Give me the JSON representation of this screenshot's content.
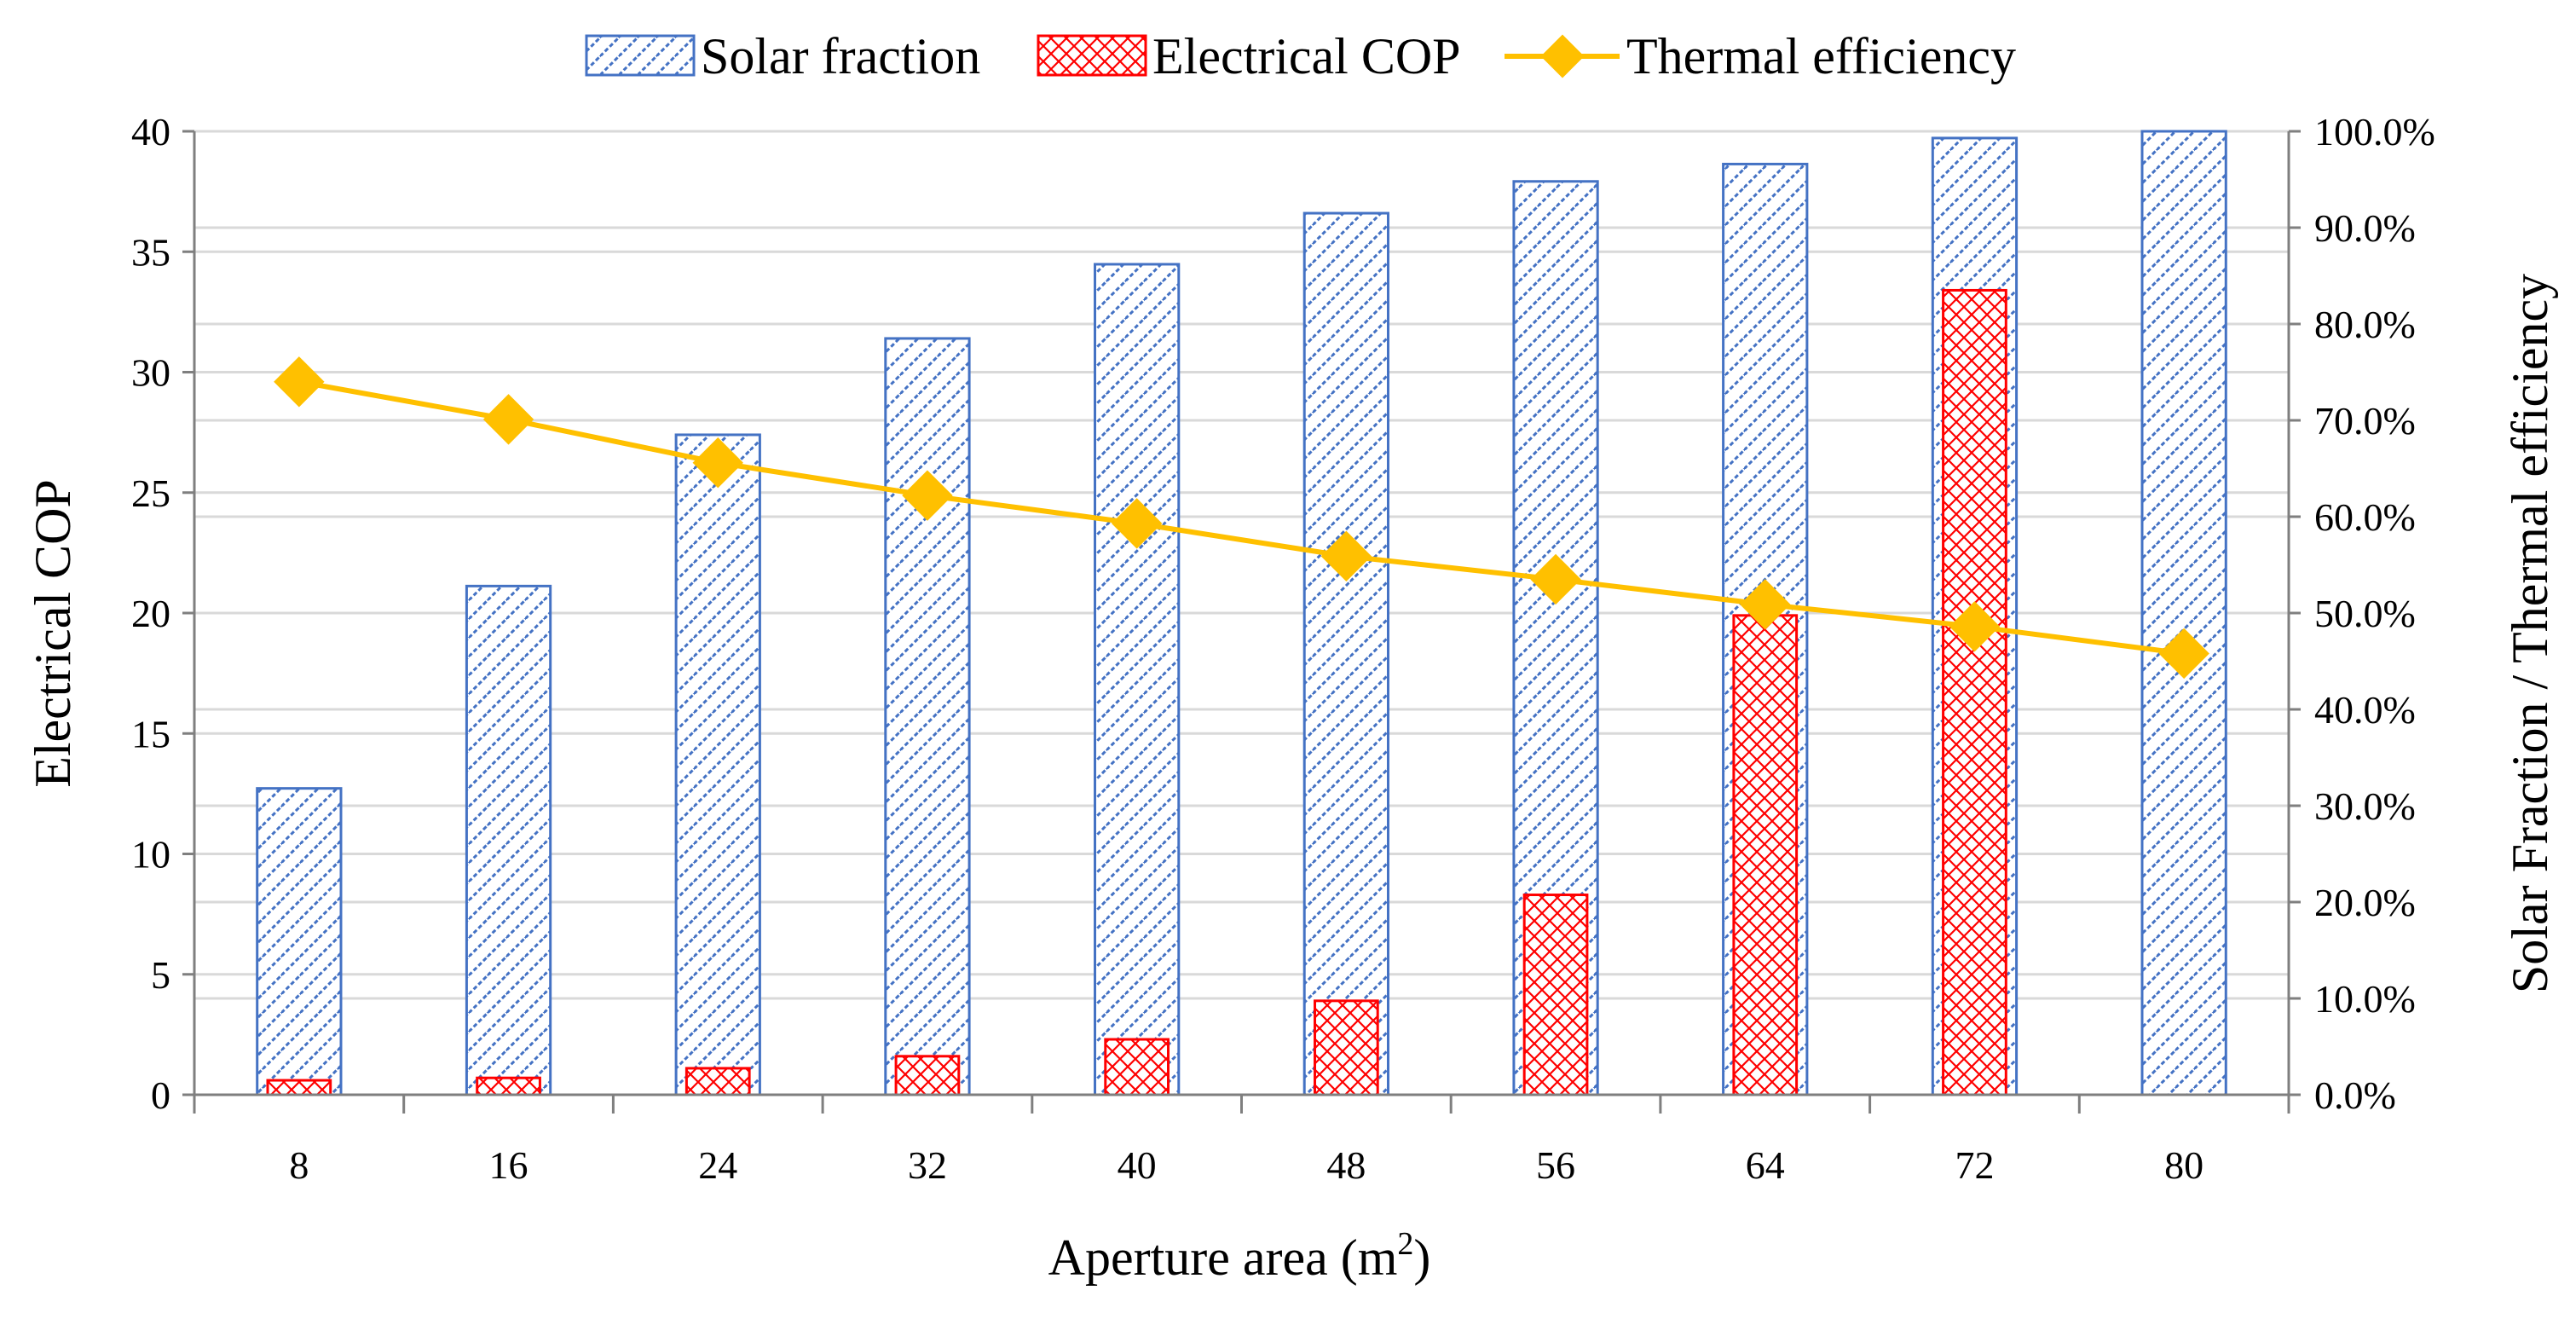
{
  "chart_data": {
    "type": "bar",
    "title": "",
    "xlabel": "Aperture area (m²)",
    "xlabel_base": "Aperture area (m",
    "xlabel_sup": "2",
    "xlabel_close": ")",
    "ylabel_left": "Electrical COP",
    "ylabel_right": "Solar Fraction / Thermal efficiency",
    "categories": [
      "8",
      "16",
      "24",
      "32",
      "40",
      "48",
      "56",
      "64",
      "72",
      "80"
    ],
    "ylim_left": [
      0,
      40
    ],
    "ylim_right": [
      0,
      100
    ],
    "left_ticks": [
      "0",
      "5",
      "10",
      "15",
      "20",
      "25",
      "30",
      "35",
      "40"
    ],
    "right_ticks": [
      "0.0%",
      "10.0%",
      "20.0%",
      "30.0%",
      "40.0%",
      "50.0%",
      "60.0%",
      "70.0%",
      "80.0%",
      "90.0%",
      "100.0%"
    ],
    "grid": true,
    "legend_position": "top-center",
    "series": [
      {
        "name": "Solar fraction",
        "type": "bar",
        "axis": "right",
        "unit": "%",
        "color": "#4472C4",
        "values": [
          31.8,
          52.8,
          68.5,
          78.5,
          86.2,
          91.5,
          94.8,
          96.6,
          99.3,
          100.0
        ]
      },
      {
        "name": "Electrical COP",
        "type": "bar",
        "axis": "left",
        "color": "#FF0000",
        "values": [
          0.6,
          0.7,
          1.1,
          1.6,
          2.3,
          3.9,
          8.3,
          19.9,
          33.4,
          0
        ]
      },
      {
        "name": "Thermal efficiency",
        "type": "line",
        "axis": "right",
        "unit": "%",
        "color": "#FFC000",
        "values": [
          74.0,
          70.1,
          65.6,
          62.2,
          59.3,
          55.9,
          53.5,
          50.9,
          48.6,
          45.8
        ]
      }
    ]
  }
}
